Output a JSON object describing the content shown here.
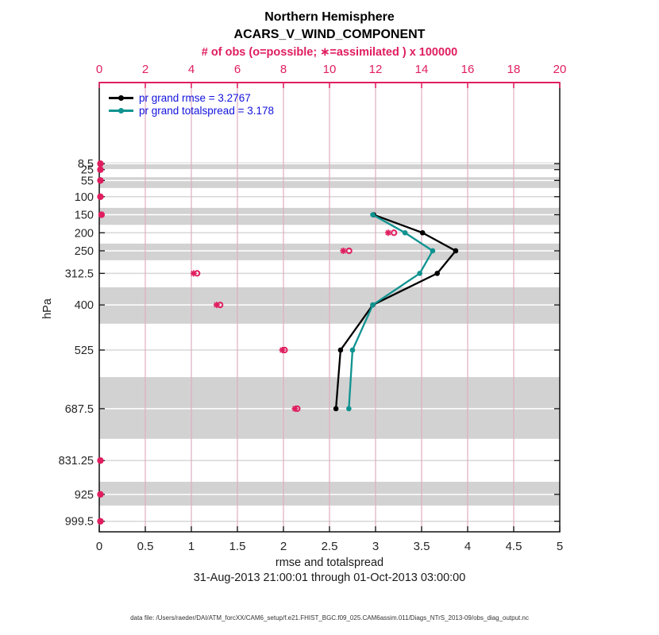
{
  "figure": {
    "title_line1": "Northern Hemisphere",
    "title_line2": "ACARS_V_WIND_COMPONENT",
    "obs_axis_label": "# of obs (o=possible; ∗=assimilated ) x 100000",
    "xlabel": "rmse and totalspread",
    "ylabel": "hPa",
    "timespan": "31-Aug-2013 21:00:01 through 01-Oct-2013 03:00:00",
    "footer": "data file: /Users/raeder/DAI/ATM_forcXX/CAM6_setup/f.e21.FHIST_BGC.f09_025.CAM6assim.011/Diags_NTrS_2013-09/obs_diag_output.nc"
  },
  "legend": {
    "rmse_label": "pr grand rmse = 3.2767",
    "totalspread_label": "pr grand totalspread = 3.178"
  },
  "colors": {
    "obs_magenta": "#e01e5f",
    "rmse_black": "#000000",
    "totalspread_teal": "#0f9390",
    "legend_text_blue": "#1212dd",
    "band_gray": "#d2d2d2",
    "level_line_plain": "#d7d7d7",
    "level_line_on_band": "#ffffff",
    "vertical_gridline": "#dfaec2",
    "spine_black": "#111111",
    "tick_text": "#262626"
  },
  "chart_data": {
    "type": "line",
    "title": "Northern Hemisphere",
    "subtitle": "ACARS_V_WIND_COMPONENT",
    "x_bottom_axis": {
      "label": "rmse and totalspread",
      "range": [
        0,
        5
      ],
      "ticks": [
        0,
        0.5,
        1,
        1.5,
        2,
        2.5,
        3,
        3.5,
        4,
        4.5,
        5
      ]
    },
    "x_top_axis": {
      "label": "# of obs (o=possible; ∗=assimilated ) x 100000",
      "range": [
        0,
        20
      ],
      "ticks": [
        0,
        2,
        4,
        6,
        8,
        10,
        12,
        14,
        16,
        18,
        20
      ]
    },
    "y_axis": {
      "label": "hPa",
      "unit": "hPa",
      "levels": [
        8.5,
        25,
        55,
        100,
        150,
        200,
        250,
        312.5,
        400,
        525,
        687.5,
        831.25,
        925,
        999.5
      ]
    },
    "series": [
      {
        "name": "pr grand rmse",
        "summary_value": 3.2767,
        "color_key": "rmse_black",
        "levels": [
          150,
          200,
          250,
          312.5,
          400,
          525,
          687.5
        ],
        "values": [
          2.98,
          3.51,
          3.87,
          3.67,
          2.97,
          2.62,
          2.57
        ]
      },
      {
        "name": "pr grand totalspread",
        "summary_value": 3.178,
        "color_key": "totalspread_teal",
        "levels": [
          150,
          200,
          250,
          312.5,
          400,
          525,
          687.5
        ],
        "values": [
          2.97,
          3.32,
          3.62,
          3.48,
          2.97,
          2.75,
          2.71
        ]
      }
    ],
    "obs_counts_x100000": {
      "levels": [
        8.5,
        25,
        55,
        100,
        150,
        200,
        250,
        312.5,
        400,
        525,
        687.5,
        831.25,
        925,
        999.5
      ],
      "possible": [
        0.05,
        0.05,
        0.05,
        0.05,
        0.1,
        12.8,
        10.85,
        4.25,
        5.25,
        8.05,
        8.6,
        0.05,
        0.05,
        0.05
      ],
      "assimilated": [
        0.05,
        0.05,
        0.05,
        0.05,
        0.1,
        12.55,
        10.6,
        4.1,
        5.1,
        7.95,
        8.5,
        0.05,
        0.05,
        0.05
      ]
    },
    "shaded_pressure_bands": [
      [
        5,
        25
      ],
      [
        46,
        76
      ],
      [
        131,
        178
      ],
      [
        230,
        276
      ],
      [
        351,
        452
      ],
      [
        600,
        771
      ],
      [
        890,
        956
      ]
    ],
    "grid": "on",
    "legend_position": "top-left-inside"
  }
}
